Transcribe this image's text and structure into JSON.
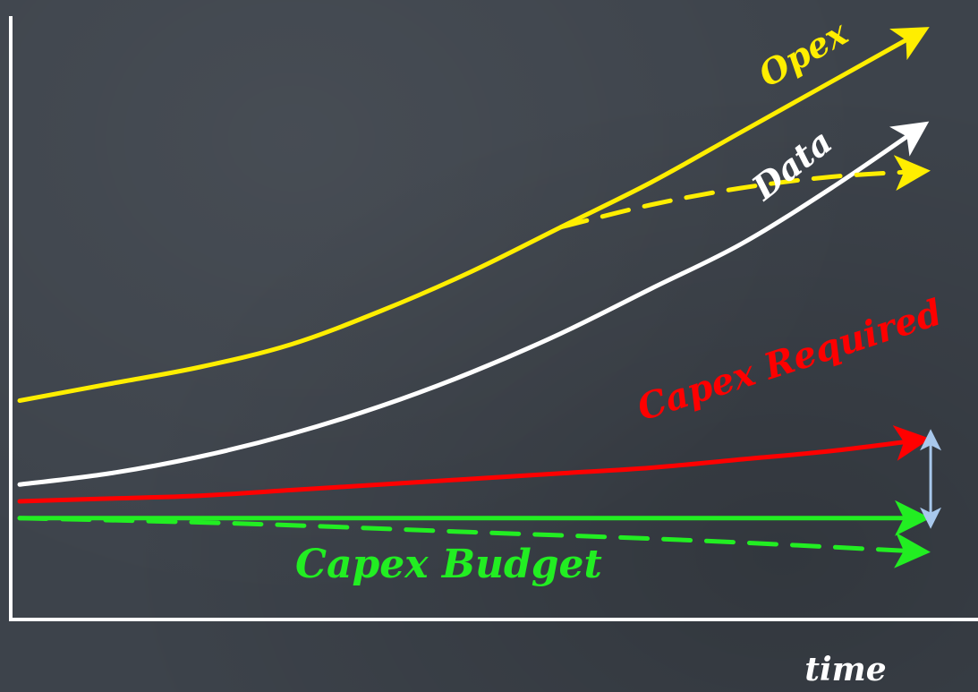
{
  "chart_data": {
    "type": "line",
    "title": "",
    "xlabel": "time",
    "ylabel": "",
    "grid": false,
    "legend": "none",
    "series": [
      {
        "name": "Opex",
        "color": "#ffee00",
        "style": "solid",
        "x": [
          0,
          10,
          20,
          30,
          40,
          50,
          60,
          70,
          80,
          90,
          100
        ],
        "values": [
          34,
          37,
          40,
          44,
          50,
          57,
          65,
          73,
          82,
          91,
          100
        ]
      },
      {
        "name": "Data",
        "color": "#ffffff",
        "style": "solid",
        "x": [
          0,
          10,
          20,
          30,
          40,
          50,
          60,
          70,
          80,
          90,
          100
        ],
        "values": [
          19,
          21,
          24,
          28,
          33,
          39,
          46,
          54,
          62,
          72,
          83
        ]
      },
      {
        "name": "",
        "color": "#ffee00",
        "style": "dashed",
        "x": [
          60,
          70,
          80,
          90,
          100
        ],
        "values": [
          65,
          69,
          72,
          74,
          75
        ]
      },
      {
        "name": "Capex Required",
        "color": "#ff0000",
        "style": "solid",
        "x": [
          0,
          10,
          20,
          30,
          40,
          50,
          60,
          70,
          80,
          90,
          100
        ],
        "values": [
          16,
          16.5,
          17,
          18,
          19,
          20,
          21,
          22,
          23.5,
          25,
          27
        ]
      },
      {
        "name": "Capex Budget",
        "color": "#22ee22",
        "style": "solid",
        "x": [
          0,
          100
        ],
        "values": [
          13,
          13
        ]
      },
      {
        "name": "",
        "color": "#22ee22",
        "style": "dashed",
        "x": [
          0,
          25,
          50,
          75,
          100
        ],
        "values": [
          13,
          12,
          10.5,
          9,
          7
        ]
      }
    ],
    "annotations": [
      {
        "type": "gap-arrow",
        "color": "#a8c8ec",
        "x": 101,
        "from": 13,
        "to": 27
      }
    ],
    "xlim": [
      0,
      100
    ],
    "ylim": [
      0,
      100
    ]
  }
}
